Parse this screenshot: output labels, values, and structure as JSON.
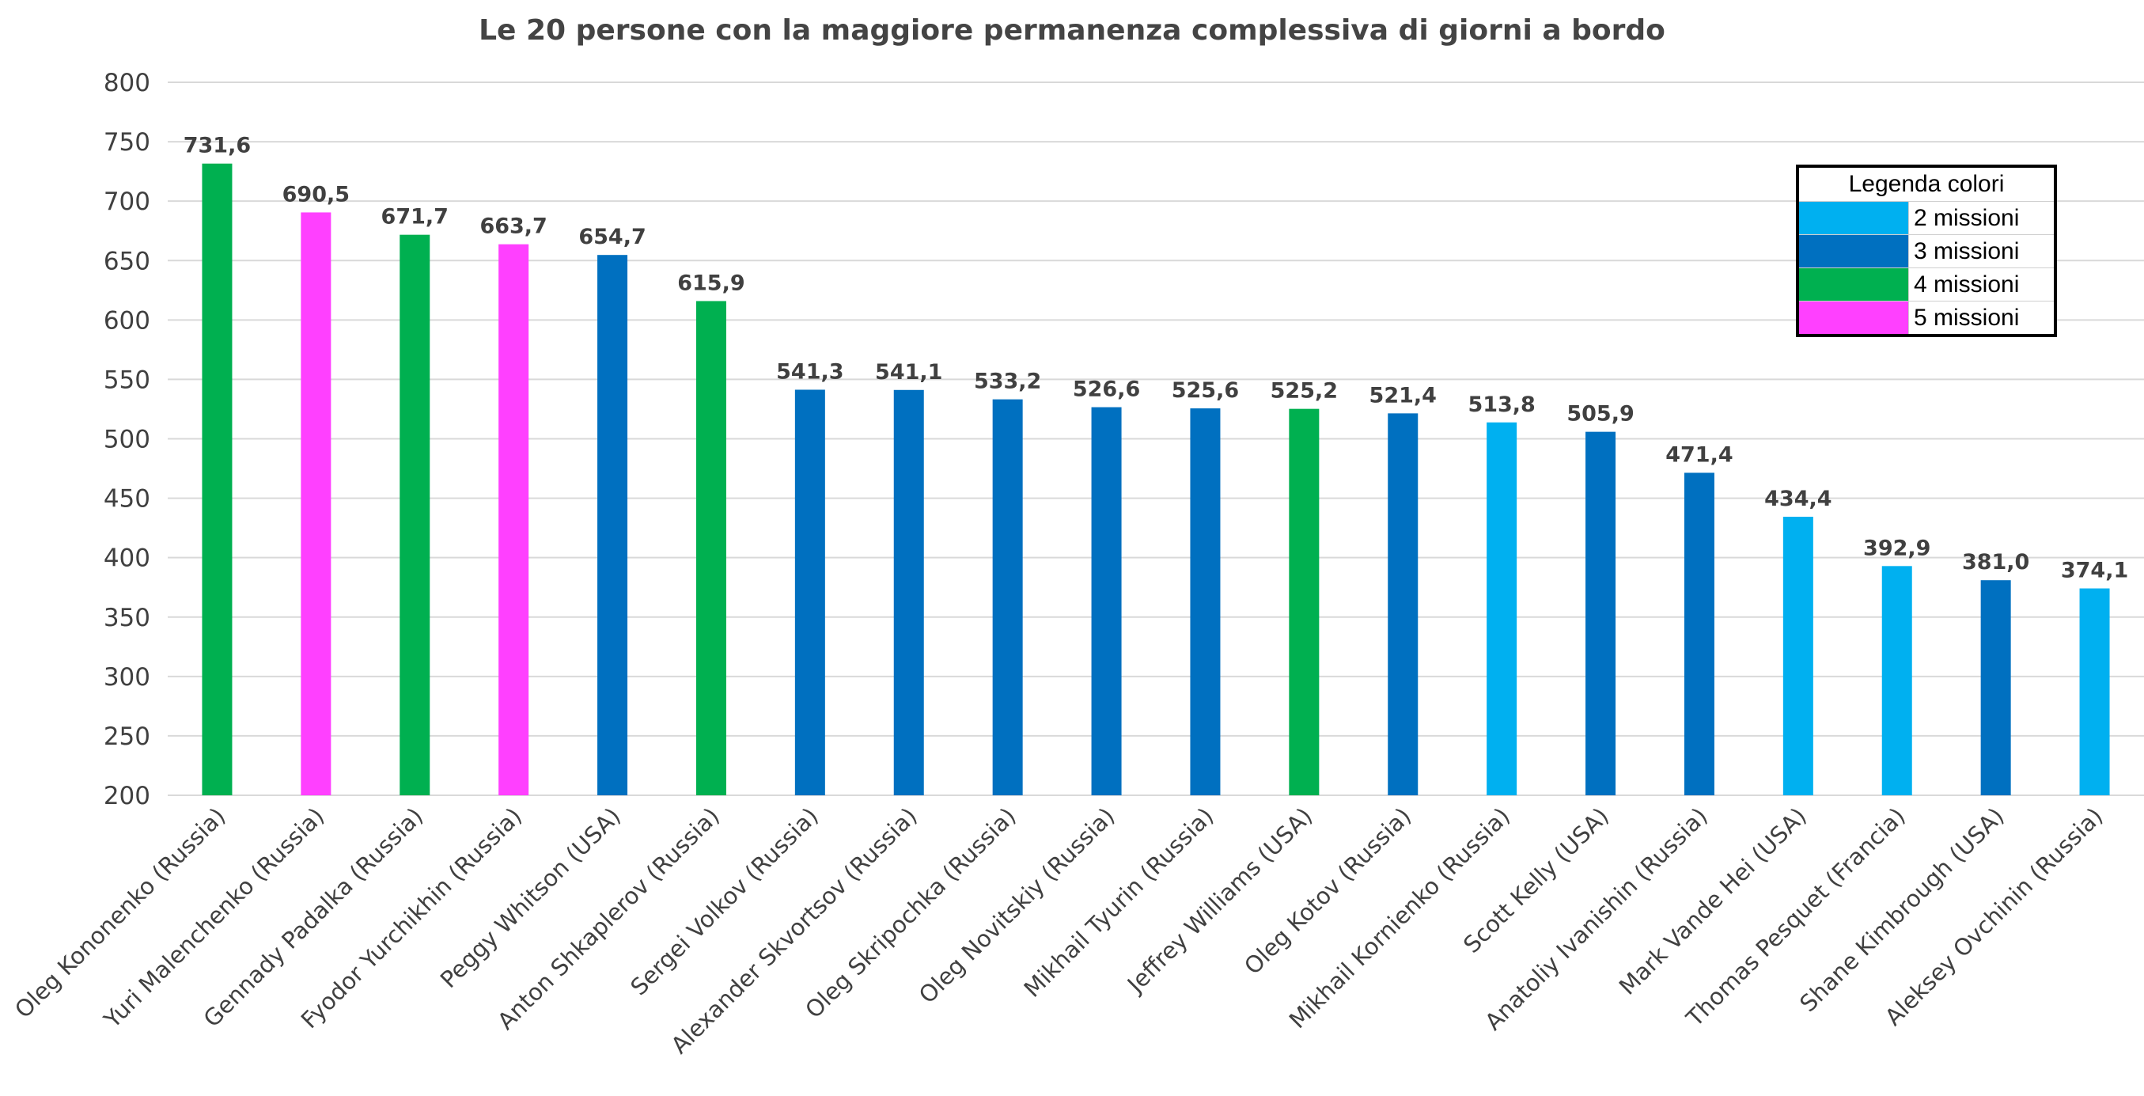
{
  "chart_data": {
    "type": "bar",
    "title": "Le 20 persone con la maggiore permanenza complessiva di giorni a bordo",
    "xlabel": "",
    "ylabel": "",
    "ylim": [
      200,
      800
    ],
    "yticks": [
      200,
      250,
      300,
      350,
      400,
      450,
      500,
      550,
      600,
      650,
      700,
      750,
      800
    ],
    "grid": true,
    "legend_position": "top-right",
    "categories": [
      "Oleg Kononenko (Russia)",
      "Yuri Malenchenko (Russia)",
      "Gennady Padalka (Russia)",
      "Fyodor Yurchikhin (Russia)",
      "Peggy Whitson (USA)",
      "Anton Shkaplerov  (Russia)",
      "Sergei Volkov (Russia)",
      "Alexander Skvortsov (Russia)",
      "Oleg Skripochka (Russia)",
      "Oleg Novitskiy (Russia)",
      "Mikhail Tyurin (Russia)",
      "Jeffrey Williams (USA)",
      "Oleg Kotov (Russia)",
      "Mikhail Kornienko (Russia)",
      "Scott Kelly (USA)",
      "Anatoliy Ivanishin (Russia)",
      "Mark Vande Hei (USA)",
      "Thomas Pesquet (Francia)",
      "Shane Kimbrough (USA)",
      "Aleksey Ovchinin (Russia)"
    ],
    "values": [
      731.6,
      690.5,
      671.7,
      663.7,
      654.7,
      615.9,
      541.3,
      541.1,
      533.2,
      526.6,
      525.6,
      525.2,
      521.4,
      513.8,
      505.9,
      471.4,
      434.4,
      392.9,
      381.0,
      374.1
    ],
    "value_labels": [
      "731,6",
      "690,5",
      "671,7",
      "663,7",
      "654,7",
      "615,9",
      "541,3",
      "541,1",
      "533,2",
      "526,6",
      "525,6",
      "525,2",
      "521,4",
      "513,8",
      "505,9",
      "471,4",
      "434,4",
      "392,9",
      "381,0",
      "374,1"
    ],
    "missions": [
      4,
      5,
      4,
      5,
      3,
      4,
      3,
      3,
      3,
      3,
      3,
      4,
      3,
      2,
      3,
      3,
      2,
      2,
      3,
      2
    ],
    "mission_colors": {
      "2": "#00B0F0",
      "3": "#0070C0",
      "4": "#00B050",
      "5": "#FF40FF"
    },
    "legend": {
      "title": "Legenda colori",
      "entries": [
        {
          "label": "2 missioni",
          "color": "#00B0F0"
        },
        {
          "label": "3 missioni",
          "color": "#0070C0"
        },
        {
          "label": "4 missioni",
          "color": "#00B050"
        },
        {
          "label": "5 missioni",
          "color": "#FF40FF"
        }
      ]
    }
  }
}
